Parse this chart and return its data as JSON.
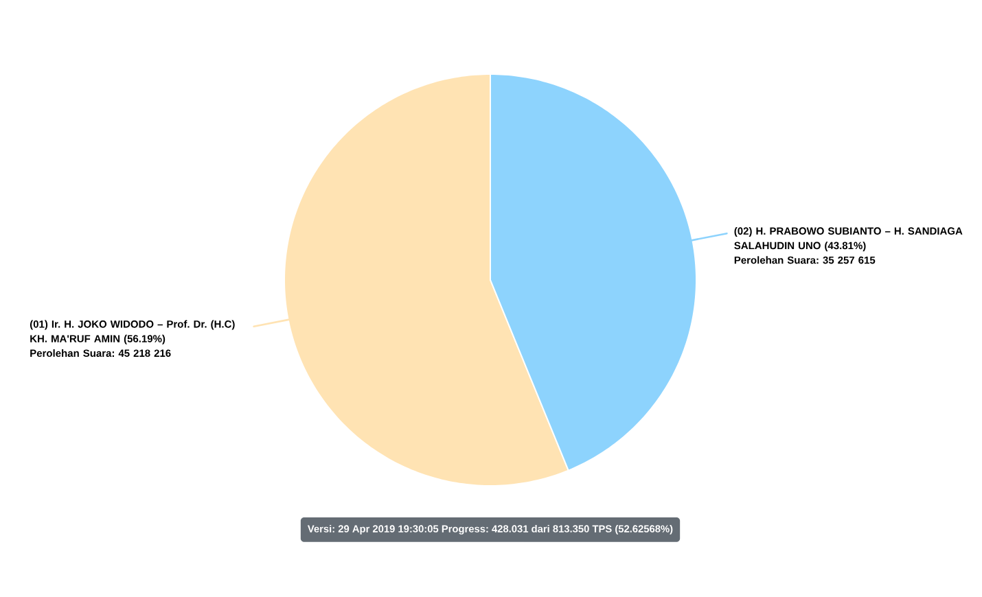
{
  "chart_data": {
    "type": "pie",
    "categories": [
      "(01) Ir. H. JOKO WIDODO – Prof. Dr. (H.C) KH. MA'RUF AMIN (56.19%)",
      "(02) H. PRABOWO SUBIANTO – H. SANDIAGA SALAHUDIN UNO (43.81%)"
    ],
    "values": [
      56.19,
      43.81
    ],
    "colors": [
      "#ffe3b3",
      "#8dd3fd"
    ],
    "annotations": [
      "Perolehan Suara: 45 218 216",
      "Perolehan Suara: 35 257 615",
      "Versi: 29 Apr 2019 19:30:05 Progress: 428.031 dari 813.350 TPS (52.62568%)"
    ]
  }
}
